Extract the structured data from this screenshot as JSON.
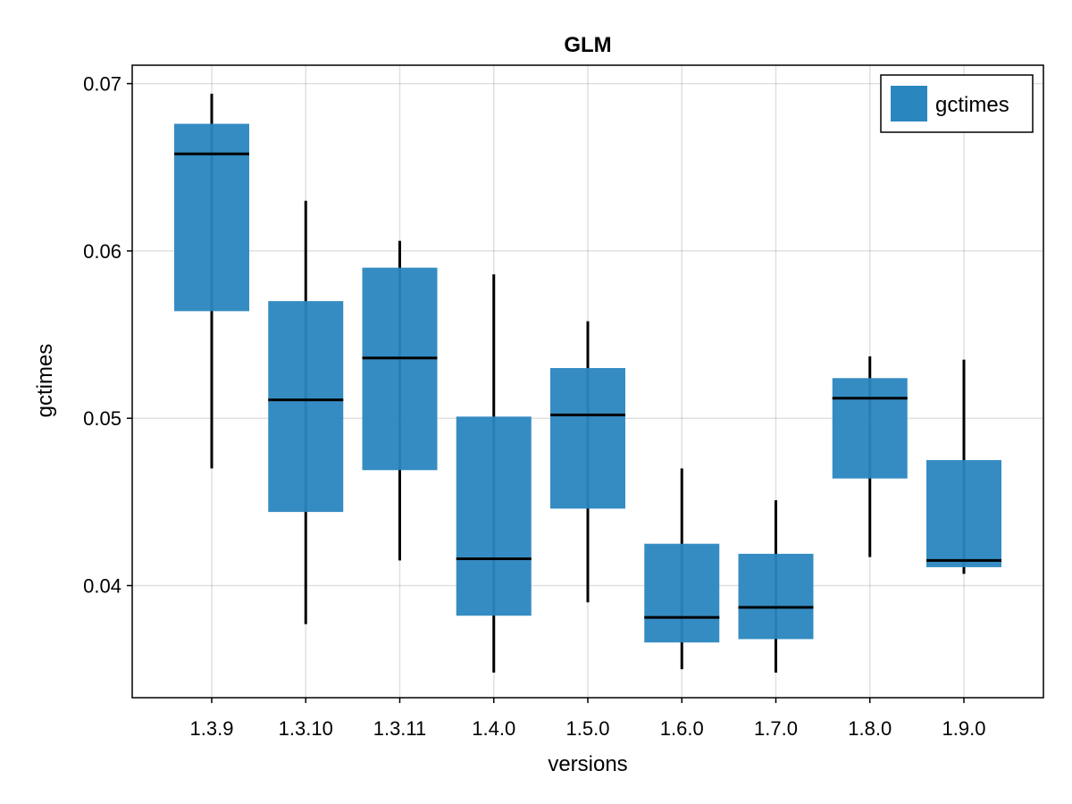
{
  "colors": {
    "box": "#2a86bf",
    "grid": "#000000",
    "frame": "#000000"
  },
  "chart_data": {
    "type": "boxplot",
    "title": "GLM",
    "xlabel": "versions",
    "ylabel": "gctimes",
    "ylim": [
      0.0333,
      0.0711
    ],
    "yticks": [
      0.04,
      0.05,
      0.06,
      0.07
    ],
    "ytick_labels": [
      "0.04",
      "0.05",
      "0.06",
      "0.07"
    ],
    "grid": true,
    "legend": {
      "placement": "top-right",
      "entries": [
        "gctimes"
      ]
    },
    "categories": [
      "1.3.9",
      "1.3.10",
      "1.3.11",
      "1.4.0",
      "1.5.0",
      "1.6.0",
      "1.7.0",
      "1.8.0",
      "1.9.0"
    ],
    "series": [
      {
        "name": "gctimes",
        "boxes": [
          {
            "category": "1.3.9",
            "whisker_low": 0.047,
            "q1": 0.0564,
            "median": 0.0658,
            "q3": 0.0676,
            "whisker_high": 0.0694
          },
          {
            "category": "1.3.10",
            "whisker_low": 0.0377,
            "q1": 0.0444,
            "median": 0.0511,
            "q3": 0.057,
            "whisker_high": 0.063
          },
          {
            "category": "1.3.11",
            "whisker_low": 0.0415,
            "q1": 0.0469,
            "median": 0.0536,
            "q3": 0.059,
            "whisker_high": 0.0606
          },
          {
            "category": "1.4.0",
            "whisker_low": 0.0348,
            "q1": 0.0382,
            "median": 0.0416,
            "q3": 0.0501,
            "whisker_high": 0.0586
          },
          {
            "category": "1.5.0",
            "whisker_low": 0.039,
            "q1": 0.0446,
            "median": 0.0502,
            "q3": 0.053,
            "whisker_high": 0.0558
          },
          {
            "category": "1.6.0",
            "whisker_low": 0.035,
            "q1": 0.0366,
            "median": 0.0381,
            "q3": 0.0425,
            "whisker_high": 0.047
          },
          {
            "category": "1.7.0",
            "whisker_low": 0.0348,
            "q1": 0.0368,
            "median": 0.0387,
            "q3": 0.0419,
            "whisker_high": 0.0451
          },
          {
            "category": "1.8.0",
            "whisker_low": 0.0417,
            "q1": 0.0464,
            "median": 0.0512,
            "q3": 0.0524,
            "whisker_high": 0.0537
          },
          {
            "category": "1.9.0",
            "whisker_low": 0.0407,
            "q1": 0.0411,
            "median": 0.0415,
            "q3": 0.0475,
            "whisker_high": 0.0535
          }
        ]
      }
    ]
  }
}
